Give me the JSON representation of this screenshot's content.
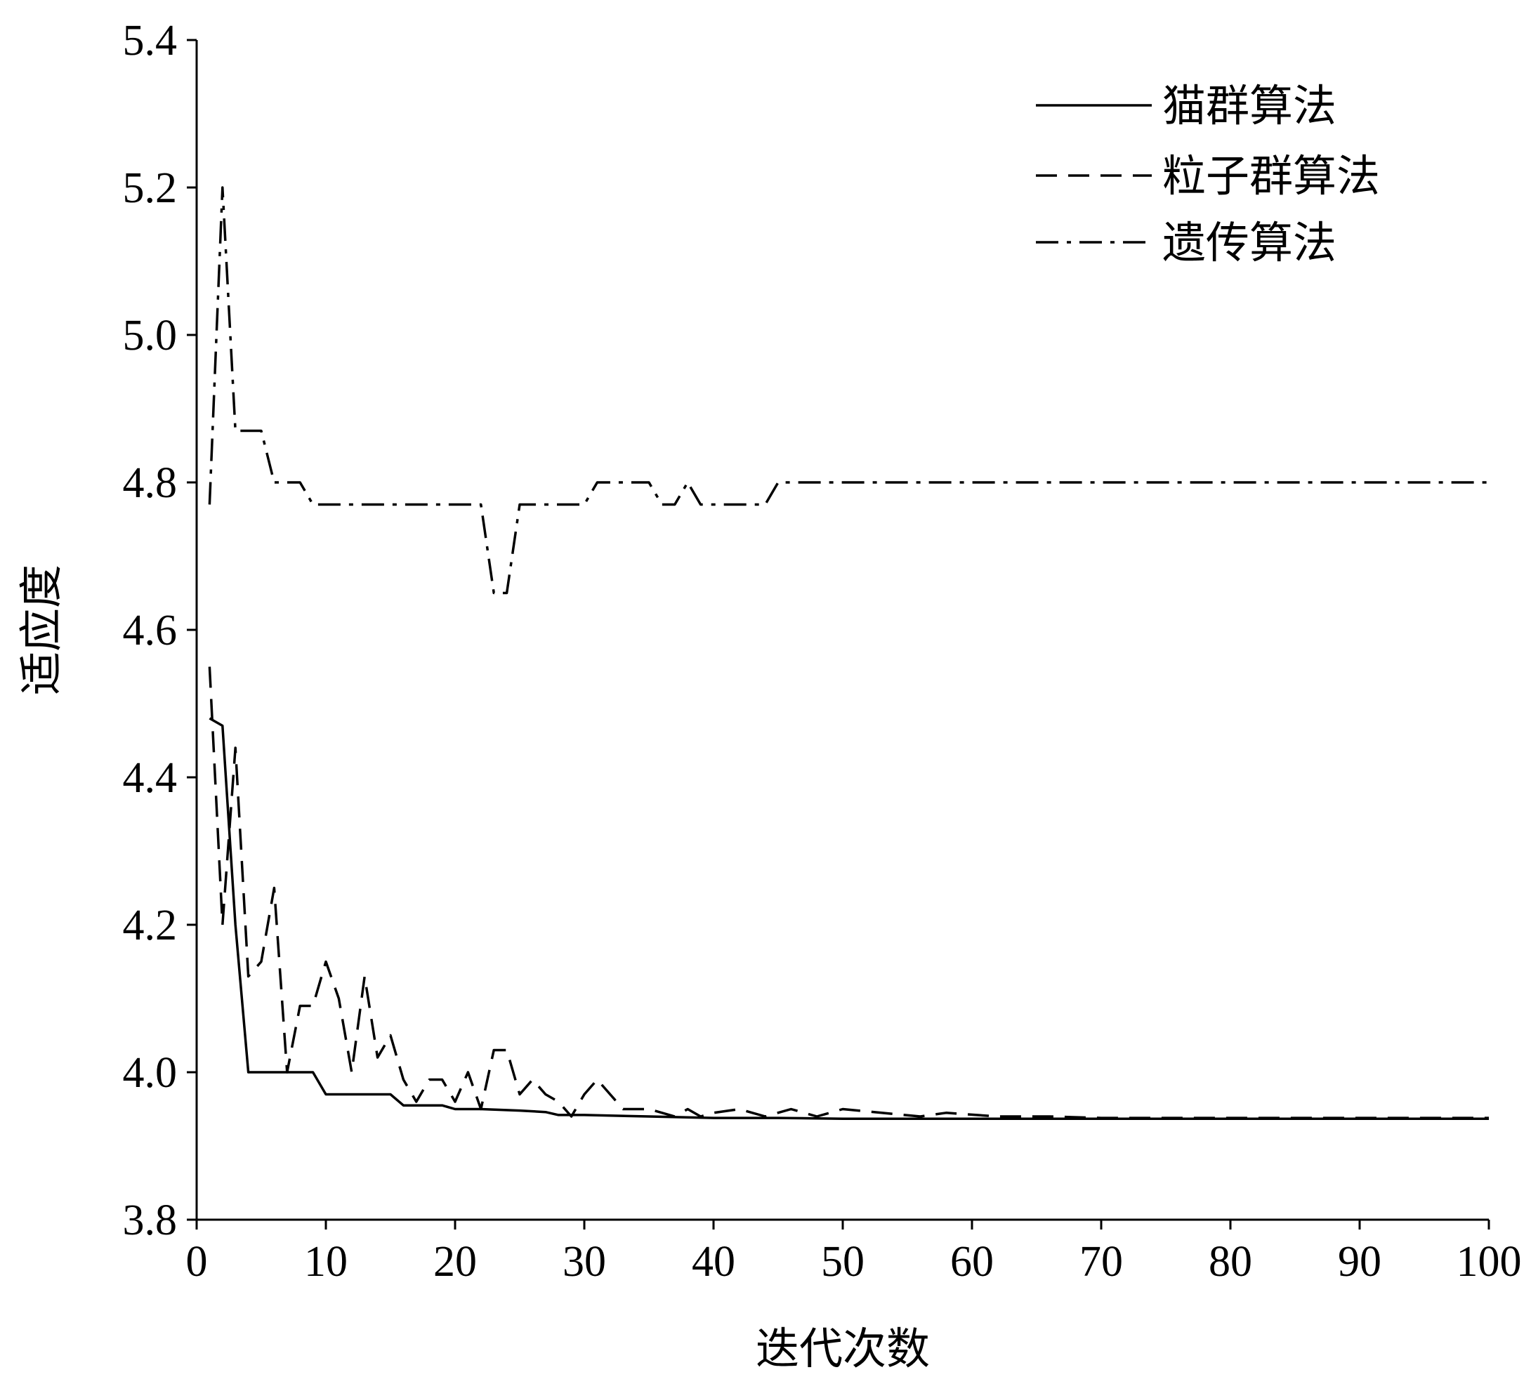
{
  "chart_data": {
    "type": "line",
    "title": "",
    "xlabel": "迭代次数",
    "ylabel": "适应度",
    "xlim": [
      0,
      100
    ],
    "ylim": [
      3.8,
      5.4
    ],
    "xticks": [
      0,
      10,
      20,
      30,
      40,
      50,
      60,
      70,
      80,
      90,
      100
    ],
    "yticks": [
      3.8,
      4.0,
      4.2,
      4.4,
      4.6,
      4.8,
      5.0,
      5.2,
      5.4
    ],
    "ytick_labels": [
      "3.8",
      "4.0",
      "4.2",
      "4.4",
      "4.6",
      "4.8",
      "5.0",
      "5.2",
      "5.4"
    ],
    "grid": false,
    "legend_position": "top-right",
    "series": [
      {
        "name": "猫群算法",
        "style": "solid",
        "color": "#000000",
        "points": [
          [
            1,
            4.48
          ],
          [
            2,
            4.47
          ],
          [
            3,
            4.2
          ],
          [
            4,
            4.0
          ],
          [
            5,
            4.0
          ],
          [
            6,
            4.0
          ],
          [
            7,
            4.0
          ],
          [
            8,
            4.0
          ],
          [
            9,
            4.0
          ],
          [
            10,
            3.97
          ],
          [
            11,
            3.97
          ],
          [
            12,
            3.97
          ],
          [
            13,
            3.97
          ],
          [
            14,
            3.97
          ],
          [
            15,
            3.97
          ],
          [
            16,
            3.955
          ],
          [
            17,
            3.955
          ],
          [
            18,
            3.955
          ],
          [
            19,
            3.955
          ],
          [
            20,
            3.95
          ],
          [
            22,
            3.95
          ],
          [
            25,
            3.948
          ],
          [
            27,
            3.946
          ],
          [
            28,
            3.942
          ],
          [
            30,
            3.942
          ],
          [
            35,
            3.94
          ],
          [
            40,
            3.938
          ],
          [
            45,
            3.938
          ],
          [
            50,
            3.937
          ],
          [
            60,
            3.937
          ],
          [
            70,
            3.937
          ],
          [
            80,
            3.937
          ],
          [
            90,
            3.937
          ],
          [
            100,
            3.937
          ]
        ]
      },
      {
        "name": "粒子群算法",
        "style": "dashed",
        "color": "#000000",
        "points": [
          [
            1,
            4.55
          ],
          [
            2,
            4.2
          ],
          [
            3,
            4.44
          ],
          [
            4,
            4.13
          ],
          [
            5,
            4.15
          ],
          [
            6,
            4.25
          ],
          [
            7,
            4.0
          ],
          [
            8,
            4.09
          ],
          [
            9,
            4.09
          ],
          [
            10,
            4.15
          ],
          [
            11,
            4.1
          ],
          [
            12,
            4.0
          ],
          [
            13,
            4.13
          ],
          [
            14,
            4.02
          ],
          [
            15,
            4.05
          ],
          [
            16,
            3.99
          ],
          [
            17,
            3.96
          ],
          [
            18,
            3.99
          ],
          [
            19,
            3.99
          ],
          [
            20,
            3.96
          ],
          [
            21,
            4.0
          ],
          [
            22,
            3.95
          ],
          [
            23,
            4.03
          ],
          [
            24,
            4.03
          ],
          [
            25,
            3.97
          ],
          [
            26,
            3.99
          ],
          [
            27,
            3.97
          ],
          [
            28,
            3.96
          ],
          [
            29,
            3.94
          ],
          [
            30,
            3.97
          ],
          [
            31,
            3.99
          ],
          [
            32,
            3.97
          ],
          [
            33,
            3.95
          ],
          [
            35,
            3.95
          ],
          [
            37,
            3.94
          ],
          [
            38,
            3.95
          ],
          [
            39,
            3.94
          ],
          [
            40,
            3.945
          ],
          [
            42,
            3.95
          ],
          [
            44,
            3.94
          ],
          [
            46,
            3.95
          ],
          [
            48,
            3.94
          ],
          [
            50,
            3.95
          ],
          [
            53,
            3.945
          ],
          [
            56,
            3.94
          ],
          [
            58,
            3.945
          ],
          [
            62,
            3.94
          ],
          [
            66,
            3.94
          ],
          [
            70,
            3.938
          ],
          [
            80,
            3.938
          ],
          [
            90,
            3.938
          ],
          [
            100,
            3.938
          ]
        ]
      },
      {
        "name": "遗传算法",
        "style": "dashdot",
        "color": "#000000",
        "points": [
          [
            1,
            4.77
          ],
          [
            2,
            5.2
          ],
          [
            3,
            4.87
          ],
          [
            4,
            4.87
          ],
          [
            5,
            4.87
          ],
          [
            6,
            4.8
          ],
          [
            7,
            4.8
          ],
          [
            8,
            4.8
          ],
          [
            9,
            4.77
          ],
          [
            10,
            4.77
          ],
          [
            11,
            4.77
          ],
          [
            12,
            4.77
          ],
          [
            13,
            4.77
          ],
          [
            14,
            4.77
          ],
          [
            15,
            4.77
          ],
          [
            16,
            4.77
          ],
          [
            17,
            4.77
          ],
          [
            18,
            4.77
          ],
          [
            19,
            4.77
          ],
          [
            20,
            4.77
          ],
          [
            21,
            4.77
          ],
          [
            22,
            4.77
          ],
          [
            23,
            4.65
          ],
          [
            24,
            4.65
          ],
          [
            25,
            4.77
          ],
          [
            26,
            4.77
          ],
          [
            27,
            4.77
          ],
          [
            28,
            4.77
          ],
          [
            29,
            4.77
          ],
          [
            30,
            4.77
          ],
          [
            31,
            4.8
          ],
          [
            32,
            4.8
          ],
          [
            33,
            4.8
          ],
          [
            34,
            4.8
          ],
          [
            35,
            4.8
          ],
          [
            36,
            4.77
          ],
          [
            37,
            4.77
          ],
          [
            38,
            4.8
          ],
          [
            39,
            4.77
          ],
          [
            40,
            4.77
          ],
          [
            41,
            4.77
          ],
          [
            42,
            4.77
          ],
          [
            43,
            4.77
          ],
          [
            44,
            4.77
          ],
          [
            45,
            4.8
          ],
          [
            50,
            4.8
          ],
          [
            60,
            4.8
          ],
          [
            70,
            4.8
          ],
          [
            80,
            4.8
          ],
          [
            90,
            4.8
          ],
          [
            100,
            4.8
          ]
        ]
      }
    ]
  }
}
